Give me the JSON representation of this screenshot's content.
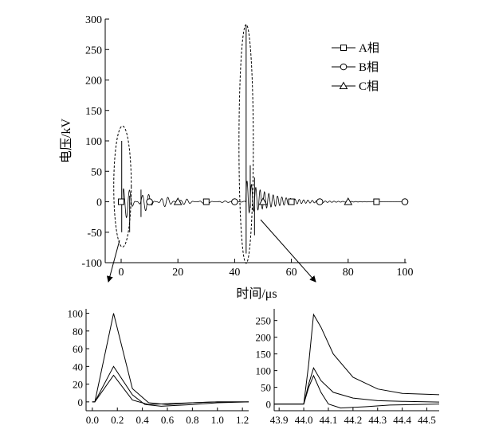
{
  "chart_data": [
    {
      "id": "main",
      "type": "line",
      "xlabel": "时间/μs",
      "ylabel": "电压/kV",
      "xlim": [
        -5,
        100
      ],
      "ylim": [
        -100,
        300
      ],
      "xticks": [
        0,
        20,
        40,
        60,
        80,
        100
      ],
      "yticks": [
        -100,
        -50,
        0,
        50,
        100,
        150,
        200,
        250,
        300
      ],
      "legend": {
        "placement": "top-right",
        "entries": [
          "A相",
          "B相",
          "C相"
        ]
      },
      "series": [
        {
          "name": "A相",
          "marker": "square",
          "markers_x": [
            0,
            10,
            20,
            30,
            40,
            50,
            60,
            70,
            80,
            90,
            100
          ]
        },
        {
          "name": "B相",
          "marker": "circle",
          "markers_x": [
            0,
            10,
            20,
            30,
            40,
            50,
            60,
            70,
            80,
            90,
            100
          ]
        },
        {
          "name": "C相",
          "marker": "triangle",
          "markers_x": [
            0,
            10,
            20,
            30,
            40,
            50,
            60,
            70,
            80,
            90,
            100
          ]
        }
      ],
      "events": [
        {
          "x": 0.2,
          "peak": 100,
          "min": -50
        },
        {
          "x": 44.05,
          "peak": 290,
          "min": -85
        }
      ],
      "grid": false
    },
    {
      "id": "zoom-left",
      "type": "line",
      "xlim": [
        -0.05,
        1.25
      ],
      "ylim": [
        -10,
        105
      ],
      "xticks": [
        0.0,
        0.2,
        0.4,
        0.6,
        0.8,
        1.0,
        1.2
      ],
      "xtick_labels": [
        "0.0",
        "0.2",
        "0.4",
        "0.6",
        "0.8",
        "1.0",
        "1.2"
      ],
      "yticks": [
        0,
        20,
        40,
        60,
        80,
        100
      ],
      "series": [
        {
          "x": [
            0.0,
            0.02,
            0.17,
            0.32,
            0.45,
            0.6,
            0.8,
            1.0,
            1.25
          ],
          "y": [
            0,
            0,
            100,
            15,
            -1,
            -3,
            -1,
            0,
            0
          ]
        },
        {
          "x": [
            0.0,
            0.02,
            0.17,
            0.32,
            0.42,
            0.55,
            0.8,
            1.0,
            1.25
          ],
          "y": [
            0,
            0,
            40,
            8,
            -3,
            -5,
            -3,
            -1,
            0
          ]
        },
        {
          "x": [
            0.0,
            0.02,
            0.17,
            0.32,
            0.45,
            0.6,
            0.8,
            1.0,
            1.25
          ],
          "y": [
            0,
            0,
            30,
            2,
            -3,
            -2,
            -1,
            0,
            0
          ]
        }
      ],
      "grid": false
    },
    {
      "id": "zoom-right",
      "type": "line",
      "xlim": [
        43.88,
        44.55
      ],
      "ylim": [
        -20,
        285
      ],
      "xticks": [
        43.9,
        44.0,
        44.1,
        44.2,
        44.3,
        44.4,
        44.5
      ],
      "xtick_labels": [
        "43.9",
        "44.0",
        "44.1",
        "44.2",
        "44.3",
        "44.4",
        "44.5"
      ],
      "yticks": [
        0,
        50,
        100,
        150,
        200,
        250
      ],
      "series": [
        {
          "x": [
            43.88,
            44.0,
            44.02,
            44.04,
            44.07,
            44.12,
            44.2,
            44.3,
            44.4,
            44.55
          ],
          "y": [
            0,
            0,
            120,
            268,
            230,
            150,
            80,
            45,
            32,
            28
          ]
        },
        {
          "x": [
            43.88,
            44.0,
            44.02,
            44.04,
            44.07,
            44.12,
            44.2,
            44.3,
            44.4,
            44.55
          ],
          "y": [
            0,
            0,
            60,
            108,
            70,
            35,
            18,
            10,
            8,
            6
          ]
        },
        {
          "x": [
            43.88,
            44.0,
            44.02,
            44.04,
            44.07,
            44.1,
            44.15,
            44.25,
            44.35,
            44.55
          ],
          "y": [
            0,
            0,
            50,
            85,
            35,
            0,
            -12,
            -8,
            -3,
            0
          ]
        }
      ],
      "grid": false
    }
  ]
}
